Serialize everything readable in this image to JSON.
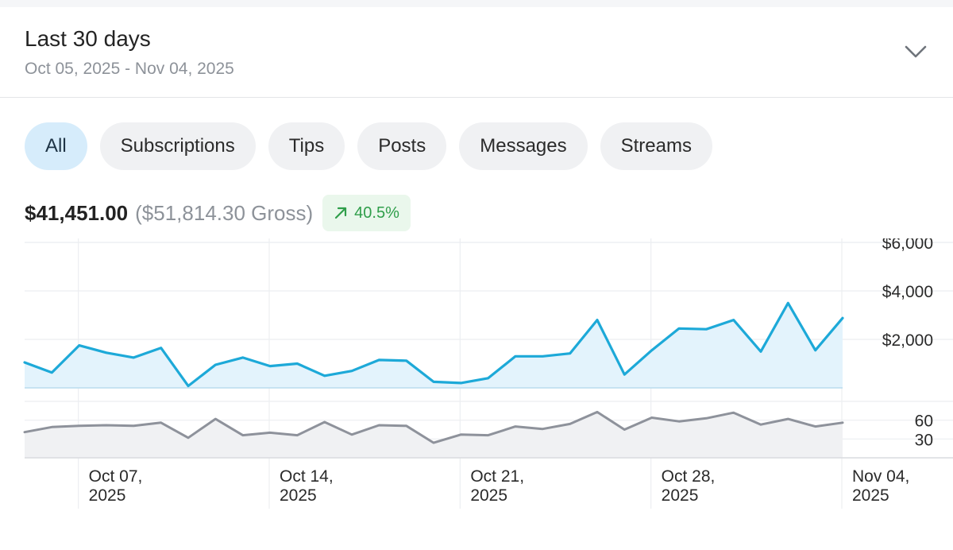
{
  "period": {
    "title": "Last 30 days",
    "range": "Oct 05, 2025 - Nov 04, 2025",
    "expand_icon": "chevron-down-icon"
  },
  "filters": [
    {
      "label": "All",
      "active": true
    },
    {
      "label": "Subscriptions",
      "active": false
    },
    {
      "label": "Tips",
      "active": false
    },
    {
      "label": "Posts",
      "active": false
    },
    {
      "label": "Messages",
      "active": false
    },
    {
      "label": "Streams",
      "active": false
    }
  ],
  "summary": {
    "net": "$41,451.00",
    "gross": "($51,814.30 Gross)",
    "growth": "40.5%",
    "growth_icon": "arrow-up-right-icon"
  },
  "colors": {
    "earnings_line": "#1da9d8",
    "earnings_fill": "#e3f3fc",
    "count_line": "#8e929b",
    "count_fill": "#f0f1f3",
    "growth_text": "#2f9e4a",
    "active_chip": "#d6ecfb"
  },
  "chart_data": [
    {
      "type": "area",
      "series": [
        {
          "values": [
            1050,
            630,
            1750,
            1450,
            1250,
            1650,
            80,
            950,
            1250,
            900,
            1000,
            500,
            700,
            1150,
            1120,
            250,
            200,
            400,
            1300,
            1300,
            1420,
            2800,
            550,
            1550,
            2450,
            2420,
            2800,
            1500,
            3500,
            1550,
            2880
          ]
        }
      ],
      "x_tick_labels": [
        {
          "index": 2,
          "label": [
            "Oct 07,",
            "2025"
          ]
        },
        {
          "index": 9,
          "label": [
            "Oct 14,",
            "2025"
          ]
        },
        {
          "index": 16,
          "label": [
            "Oct 21,",
            "2025"
          ]
        },
        {
          "index": 23,
          "label": [
            "Oct 28,",
            "2025"
          ]
        },
        {
          "index": 30,
          "label": [
            "Nov 04,",
            "2025"
          ]
        }
      ],
      "y_tick_labels": [
        {
          "value": 2000,
          "label": "$2,000"
        },
        {
          "value": 4000,
          "label": "$4,000"
        },
        {
          "value": 6000,
          "label": "$6,000"
        }
      ],
      "ylim": [
        0,
        6000
      ],
      "grid": true
    },
    {
      "type": "area",
      "series": [
        {
          "values": [
            41,
            49,
            51,
            52,
            51,
            56,
            32,
            62,
            36,
            40,
            36,
            57,
            37,
            52,
            51,
            24,
            37,
            36,
            50,
            46,
            54,
            73,
            45,
            64,
            58,
            63,
            72,
            53,
            62,
            50,
            56
          ]
        }
      ],
      "y_tick_labels": [
        {
          "value": 30,
          "label": "30"
        },
        {
          "value": 60,
          "label": "60"
        }
      ],
      "ylim": [
        0,
        90
      ],
      "grid": true
    }
  ]
}
